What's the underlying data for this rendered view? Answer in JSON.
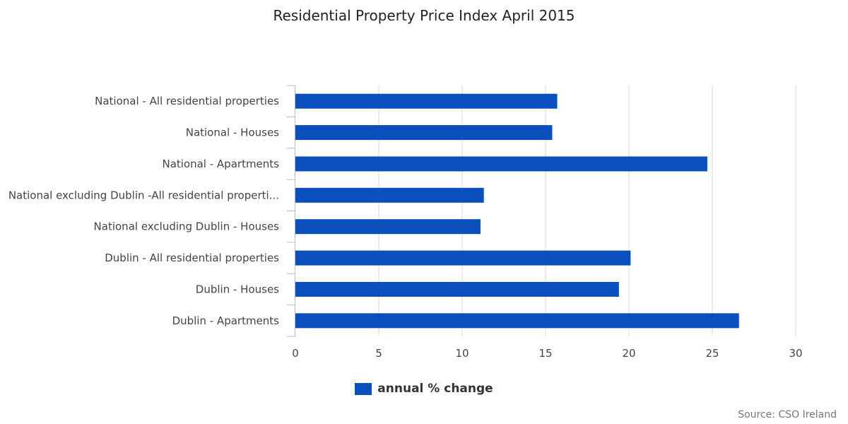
{
  "chart_data": {
    "type": "bar",
    "orientation": "horizontal",
    "title": "Residential Property Price Index April 2015",
    "categories": [
      "National - All residential properties",
      "National - Houses",
      "National - Apartments",
      "National excluding Dublin -All residential properti...",
      "National excluding Dublin - Houses",
      "Dublin - All residential properties",
      "Dublin - Houses",
      "Dublin - Apartments"
    ],
    "series": [
      {
        "name": "annual % change",
        "color": "#0a4fbb",
        "values": [
          15.7,
          15.4,
          24.7,
          11.3,
          11.1,
          20.1,
          19.4,
          26.6
        ]
      }
    ],
    "xticks": [
      "0",
      "5",
      "10",
      "15",
      "20",
      "25",
      "30"
    ],
    "xlim": [
      0,
      30
    ],
    "xlabel": "",
    "ylabel": "",
    "grid": true,
    "legend_position": "bottom-center"
  },
  "source": "Source: CSO Ireland"
}
